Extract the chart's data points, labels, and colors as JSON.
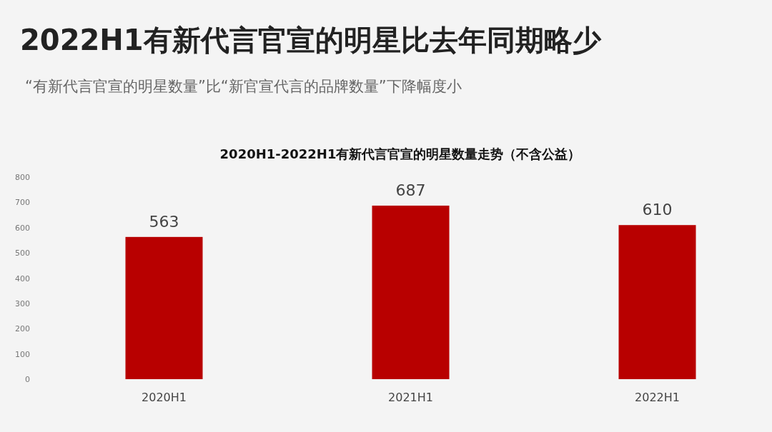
{
  "chart_data": {
    "type": "bar",
    "title": "2020H1-2022H1有新代言官宣的明星数量走势（不含公益）",
    "annotations": [
      "2022H1有新代言官宣的明星比去年同期略少",
      "“有新代言官宣的明星数量”比“新官宣代言的品牌数量”下降幅度小"
    ],
    "categories": [
      "2020H1",
      "2021H1",
      "2022H1"
    ],
    "values": [
      563,
      687,
      610
    ],
    "color": "#b80000",
    "ylim": [
      0,
      800
    ],
    "yticks": [
      0,
      100,
      200,
      300,
      400,
      500,
      600,
      700,
      800
    ],
    "grid": false,
    "data_labels": true
  }
}
